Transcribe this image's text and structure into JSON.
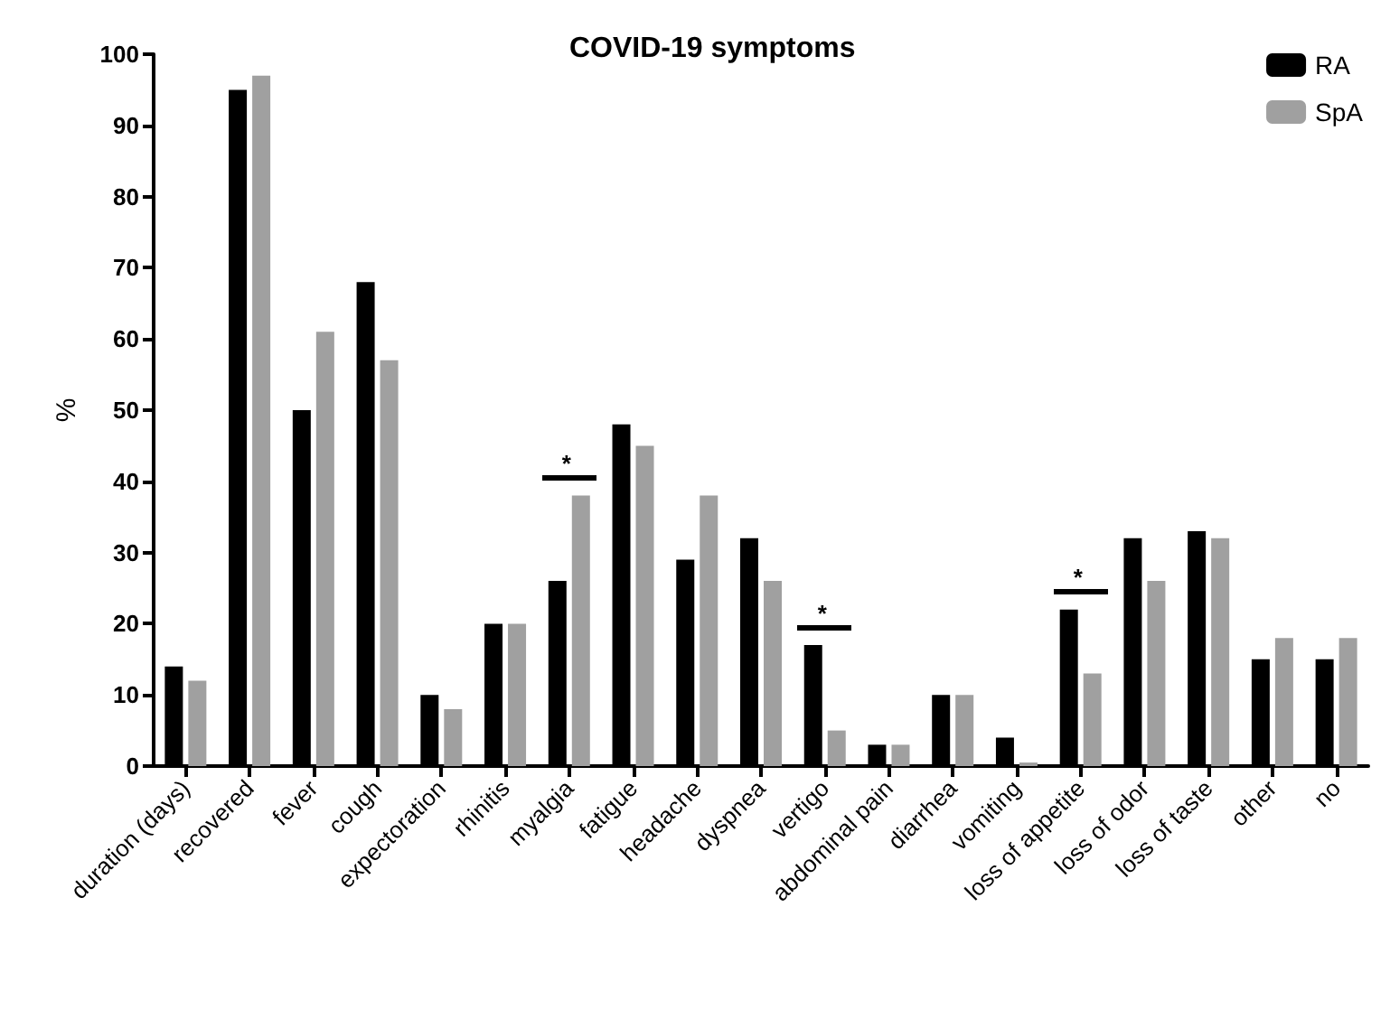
{
  "chart_data": {
    "type": "bar",
    "title": "COVID-19 symptoms",
    "ylabel": "%",
    "categories": [
      "duration (days)",
      "recovered",
      "fever",
      "cough",
      "expectoration",
      "rhinitis",
      "myalgia",
      "fatigue",
      "headache",
      "dyspnea",
      "vertigo",
      "abdominal pain",
      "diarrhea",
      "vomiting",
      "loss of appetite",
      "loss of odor",
      "loss of taste",
      "other",
      "no"
    ],
    "series": [
      {
        "name": "RA",
        "color": "#000000",
        "values": [
          14,
          95,
          50,
          68,
          10,
          20,
          26,
          48,
          29,
          32,
          17,
          3,
          10,
          4,
          22,
          32,
          33,
          15,
          15
        ]
      },
      {
        "name": "SpA",
        "color": "#a0a0a0",
        "values": [
          12,
          97,
          61,
          57,
          8,
          20,
          38,
          45,
          38,
          26,
          5,
          3,
          10,
          0.5,
          13,
          26,
          32,
          18,
          18
        ]
      }
    ],
    "ylim": [
      0,
      100
    ],
    "yticks": [
      0,
      10,
      20,
      30,
      40,
      50,
      60,
      70,
      80,
      90,
      100
    ],
    "grid": false,
    "legend": "top right",
    "annotations": [
      "*",
      "*",
      "*"
    ]
  }
}
